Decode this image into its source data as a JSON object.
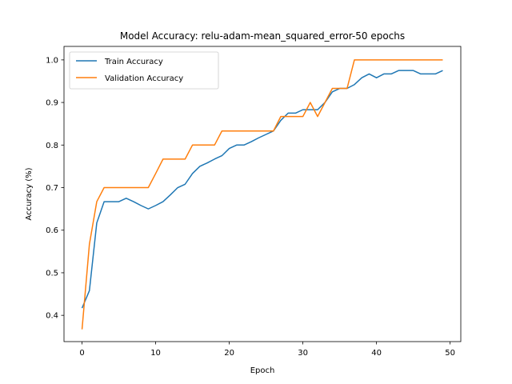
{
  "chart_data": {
    "type": "line",
    "title": "Model Accuracy: relu-adam-mean_squared_error-50 epochs",
    "xlabel": "Epoch",
    "ylabel": "Accuracy (%)",
    "xlim": [
      -2.45,
      51.45
    ],
    "ylim": [
      0.3383,
      1.0317
    ],
    "xticks": [
      0,
      10,
      20,
      30,
      40,
      50
    ],
    "yticks": [
      0.4,
      0.5,
      0.6,
      0.7,
      0.8,
      0.9,
      1.0
    ],
    "legend_position": "top-left",
    "grid": false,
    "x": [
      0,
      1,
      2,
      3,
      4,
      5,
      6,
      7,
      8,
      9,
      10,
      11,
      12,
      13,
      14,
      15,
      16,
      17,
      18,
      19,
      20,
      21,
      22,
      23,
      24,
      25,
      26,
      27,
      28,
      29,
      30,
      31,
      32,
      33,
      34,
      35,
      36,
      37,
      38,
      39,
      40,
      41,
      42,
      43,
      44,
      45,
      46,
      47,
      48,
      49
    ],
    "series": [
      {
        "name": "Train Accuracy",
        "color": "#1f77b4",
        "values": [
          0.417,
          0.458,
          0.617,
          0.667,
          0.667,
          0.667,
          0.675,
          0.667,
          0.658,
          0.65,
          0.658,
          0.667,
          0.683,
          0.7,
          0.708,
          0.733,
          0.75,
          0.758,
          0.767,
          0.775,
          0.792,
          0.8,
          0.8,
          0.808,
          0.817,
          0.825,
          0.833,
          0.858,
          0.875,
          0.875,
          0.883,
          0.883,
          0.883,
          0.9,
          0.925,
          0.933,
          0.933,
          0.942,
          0.958,
          0.967,
          0.958,
          0.967,
          0.967,
          0.975,
          0.975,
          0.975,
          0.967,
          0.967,
          0.967,
          0.975
        ]
      },
      {
        "name": "Validation Accuracy",
        "color": "#ff7f0e",
        "values": [
          0.367,
          0.567,
          0.667,
          0.7,
          0.7,
          0.7,
          0.7,
          0.7,
          0.7,
          0.7,
          0.733,
          0.767,
          0.767,
          0.767,
          0.767,
          0.8,
          0.8,
          0.8,
          0.8,
          0.833,
          0.833,
          0.833,
          0.833,
          0.833,
          0.833,
          0.833,
          0.833,
          0.867,
          0.867,
          0.867,
          0.867,
          0.9,
          0.867,
          0.9,
          0.933,
          0.933,
          0.933,
          1.0,
          1.0,
          1.0,
          1.0,
          1.0,
          1.0,
          1.0,
          1.0,
          1.0,
          1.0,
          1.0,
          1.0,
          1.0
        ]
      }
    ]
  }
}
